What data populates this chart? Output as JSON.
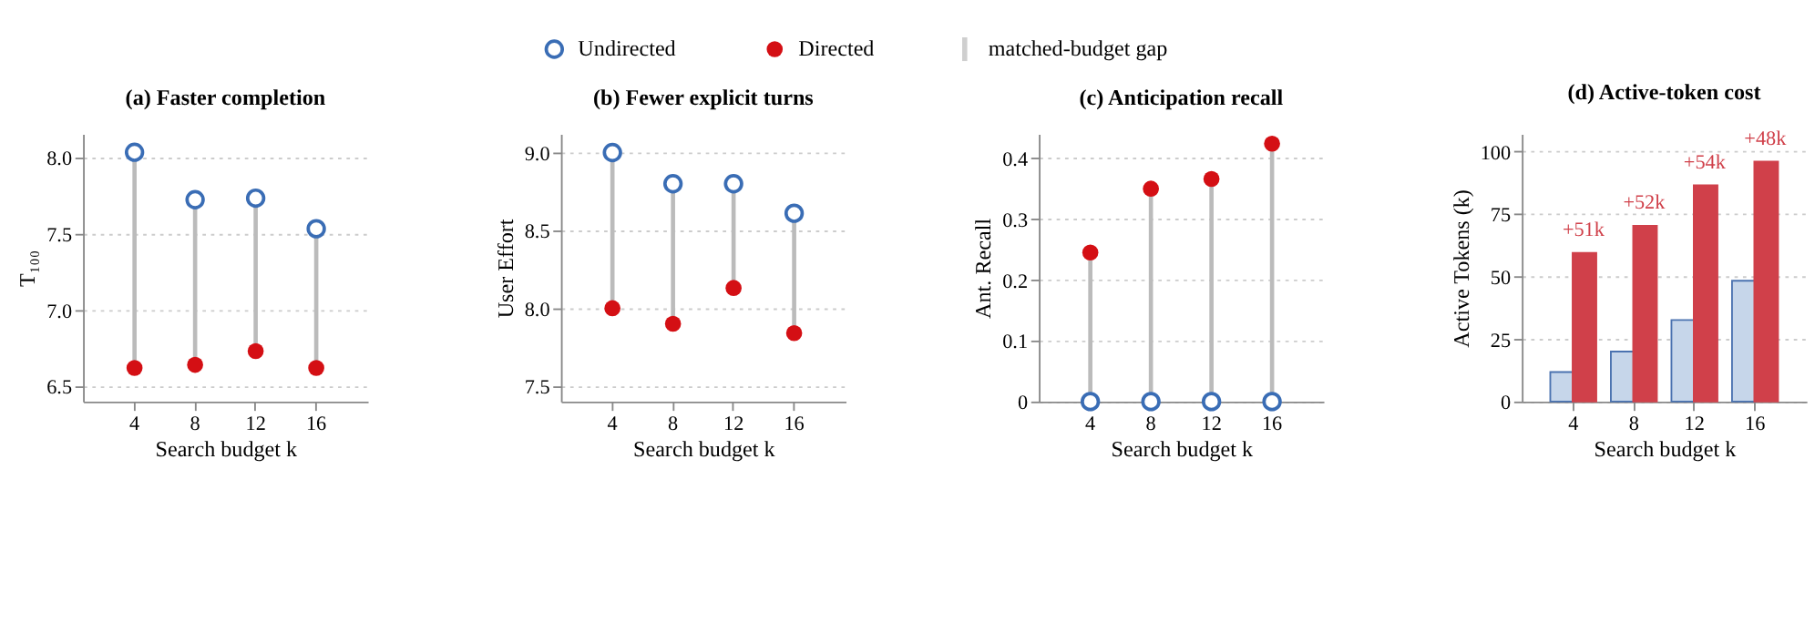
{
  "chart_data": [
    {
      "type": "scatter",
      "title": "(a) Faster completion",
      "xlabel": "Search budget k",
      "ylabel": "T₁₀₀",
      "categories": [
        "4",
        "8",
        "12",
        "16"
      ],
      "ylim": [
        6.4,
        8.15
      ],
      "yticks": [
        6.5,
        {
          "value": 7,
          "label": "7.0"
        },
        7.5,
        {
          "value": 8,
          "label": "8.0"
        }
      ],
      "grid": "y",
      "legend": "top",
      "marker": "circle",
      "annotations": [
        "matched-budget gap"
      ],
      "series": [
        {
          "name": "Undirected",
          "type": "scatter",
          "color": "#3a6db5",
          "values": [
            8.03,
            7.72,
            7.73,
            7.53
          ]
        },
        {
          "name": "Directed",
          "type": "scatter",
          "color": "#d40f14",
          "values": [
            6.62,
            6.64,
            6.73,
            6.62
          ]
        }
      ]
    },
    {
      "type": "scatter",
      "title": "(b) Fewer explicit turns",
      "xlabel": "Search budget k",
      "ylabel": "User Effort",
      "categories": [
        "4",
        "8",
        "12",
        "16"
      ],
      "ylim": [
        7.4,
        9.12
      ],
      "yticks": [
        7.5,
        {
          "value": 8,
          "label": "8.0"
        },
        8.5,
        {
          "value": 9,
          "label": "9.0"
        }
      ],
      "grid": "y",
      "marker": "circle",
      "series": [
        {
          "type": "scatter",
          "color": "#3a6db5",
          "values": [
            9.0,
            8.8,
            8.8,
            8.61
          ]
        },
        {
          "type": "scatter",
          "color": "#d40f14",
          "values": [
            8.0,
            7.9,
            8.13,
            7.84
          ]
        }
      ]
    },
    {
      "type": "scatter",
      "title": "(c) Anticipation recall",
      "xlabel": "Search budget k",
      "ylabel": "Ant. Recall",
      "categories": [
        "4",
        "8",
        "12",
        "16"
      ],
      "ylim": [
        0,
        0.44
      ],
      "yticks": [
        0,
        0.1,
        0.2,
        0.3,
        0.4
      ],
      "grid": "y",
      "marker": "circle",
      "series": [
        {
          "type": "scatter",
          "color": "#3a6db5",
          "values": [
            0,
            0,
            0,
            0
          ]
        },
        {
          "type": "scatter",
          "color": "#d40f14",
          "values": [
            0.245,
            0.35,
            0.366,
            0.424
          ]
        }
      ]
    },
    {
      "type": "bar",
      "title": "(d) Active-token cost",
      "xlabel": "Search budget k",
      "ylabel": "Active Tokens (k)",
      "categories": [
        "4",
        "8",
        "12",
        "16"
      ],
      "ylim": [
        0,
        107
      ],
      "yticks": [
        0,
        25,
        50,
        75,
        100
      ],
      "grid": "y",
      "annotations": [
        {
          "text": "+51k",
          "x": "4",
          "y": 59.4
        },
        {
          "text": "+52k",
          "x": "8",
          "y": 70.3
        },
        {
          "text": "+54k",
          "x": "12",
          "y": 86.5
        },
        {
          "text": "+48k",
          "x": "16",
          "y": 95.9
        }
      ],
      "series": [
        {
          "color": "#c6d6ea",
          "values": [
            11.8,
            20,
            32.6,
            48.3
          ]
        },
        {
          "color": "#d0404a",
          "values": [
            59.4,
            70.3,
            86.5,
            95.9
          ]
        }
      ]
    }
  ]
}
